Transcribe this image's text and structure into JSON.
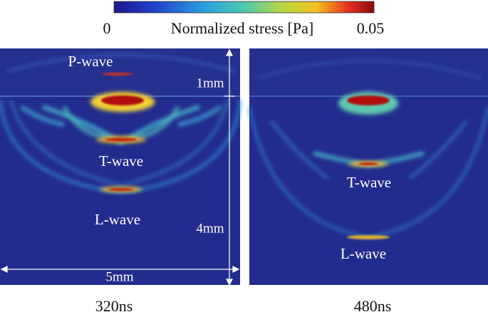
{
  "colorbar": {
    "min_label": "0",
    "title": "Normalized stress [Pa]",
    "max_label": "0.05"
  },
  "panels": [
    {
      "time": "320ns",
      "labels": [
        "P-wave",
        "T-wave",
        "L-wave"
      ],
      "dimensions": [
        "1mm",
        "4mm",
        "5mm"
      ]
    },
    {
      "time": "480ns",
      "labels": [
        "T-wave",
        "L-wave"
      ]
    }
  ]
}
